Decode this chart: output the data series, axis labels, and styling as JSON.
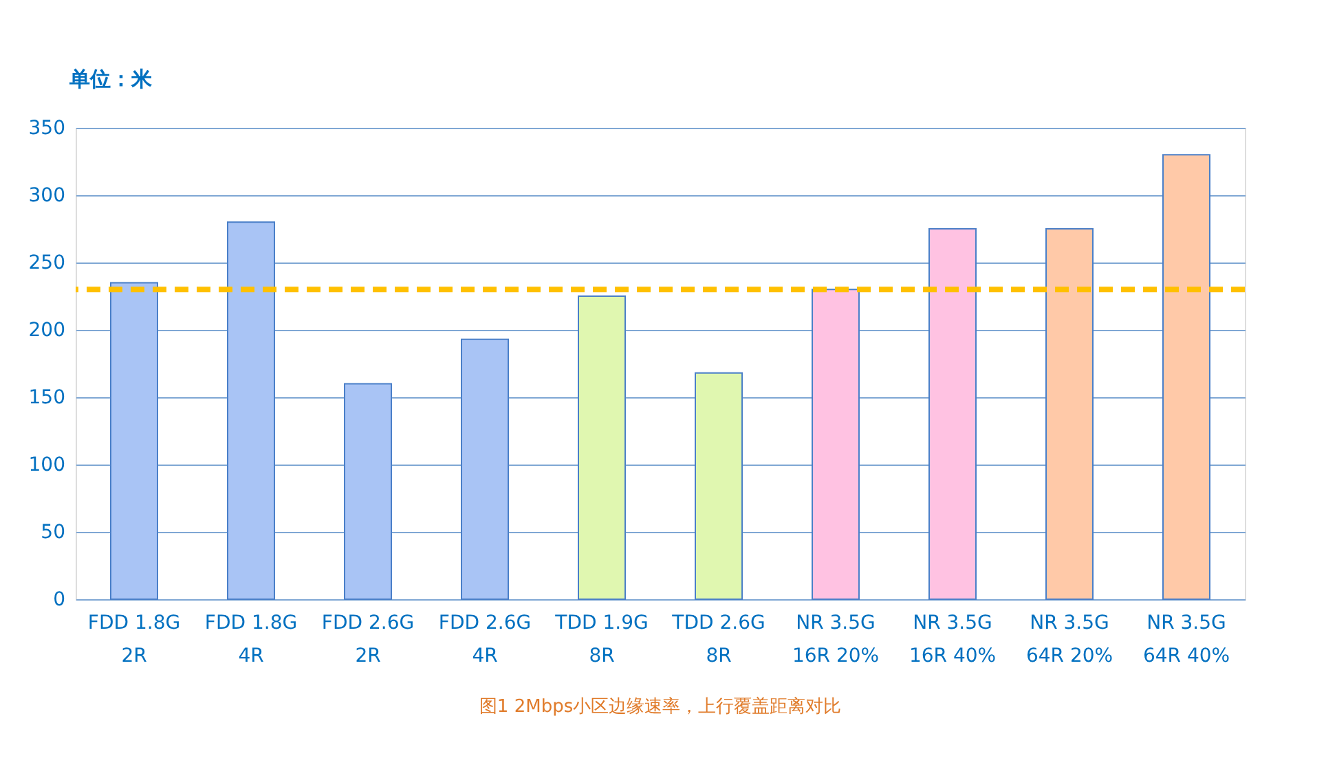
{
  "chart_data": {
    "type": "bar",
    "ylabel": "单位：米",
    "categories": [
      "FDD 1.8G\n2R",
      "FDD 1.8G\n4R",
      "FDD 2.6G\n2R",
      "FDD 2.6G\n4R",
      "TDD 1.9G\n8R",
      "TDD 2.6G\n8R",
      "NR 3.5G\n16R 20%",
      "NR 3.5G\n16R 40%",
      "NR 3.5G\n64R 20%",
      "NR 3.5G\n64R 40%"
    ],
    "values": [
      235,
      280,
      160,
      193,
      225,
      168,
      230,
      275,
      275,
      330
    ],
    "colors": [
      "#a9c4f5",
      "#a9c4f5",
      "#a9c4f5",
      "#a9c4f5",
      "#e0f7b0",
      "#e0f7b0",
      "#ffc2e2",
      "#ffc2e2",
      "#ffc9a8",
      "#ffc9a8"
    ],
    "ylim": [
      0,
      350
    ],
    "yticks": [
      0,
      50,
      100,
      150,
      200,
      250,
      300,
      350
    ],
    "grid": "y",
    "ref_lines": [
      {
        "axis": "y",
        "value": 230,
        "label": null,
        "color": "#ffc000",
        "line_style": "dashed"
      }
    ],
    "annotations": [
      "图1  2Mbps小区边缘速率，上行覆盖距离对比"
    ]
  }
}
